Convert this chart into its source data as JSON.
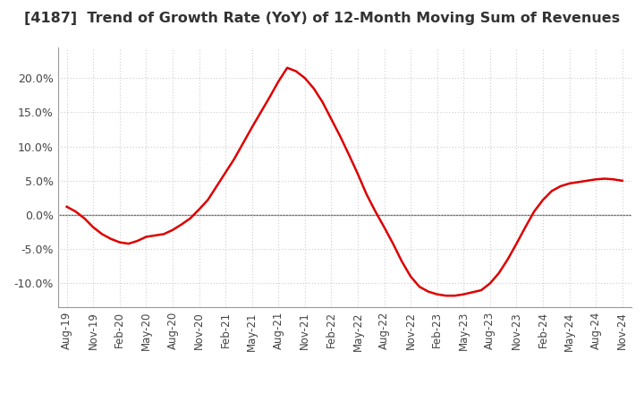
{
  "title": "[4187]  Trend of Growth Rate (YoY) of 12-Month Moving Sum of Revenues",
  "title_fontsize": 11.5,
  "title_color": "#333333",
  "line_color": "#dd0000",
  "line_width": 1.8,
  "background_color": "#ffffff",
  "grid_color": "#cccccc",
  "zero_line_color": "#666666",
  "ylim": [
    -0.135,
    0.245
  ],
  "yticks": [
    -0.1,
    -0.05,
    0.0,
    0.05,
    0.1,
    0.15,
    0.2
  ],
  "monthly_values": [
    0.012,
    0.005,
    -0.005,
    -0.018,
    -0.028,
    -0.035,
    -0.04,
    -0.042,
    -0.038,
    -0.032,
    -0.03,
    -0.028,
    -0.022,
    -0.014,
    -0.005,
    0.008,
    0.022,
    0.042,
    0.062,
    0.082,
    0.105,
    0.128,
    0.15,
    0.172,
    0.195,
    0.215,
    0.21,
    0.2,
    0.185,
    0.165,
    0.14,
    0.115,
    0.088,
    0.06,
    0.03,
    0.005,
    -0.018,
    -0.042,
    -0.068,
    -0.09,
    -0.105,
    -0.112,
    -0.116,
    -0.118,
    -0.118,
    -0.116,
    -0.113,
    -0.11,
    -0.1,
    -0.085,
    -0.065,
    -0.042,
    -0.018,
    0.005,
    0.022,
    0.035,
    0.042,
    0.046,
    0.048,
    0.05,
    0.052,
    0.053,
    0.052,
    0.05
  ],
  "tick_labels": [
    "Aug-19",
    "Nov-19",
    "Feb-20",
    "May-20",
    "Aug-20",
    "Nov-20",
    "Feb-21",
    "May-21",
    "Aug-21",
    "Nov-21",
    "Feb-22",
    "May-22",
    "Aug-22",
    "Nov-22",
    "Feb-23",
    "May-23",
    "Aug-23",
    "Nov-23",
    "Feb-24",
    "May-24",
    "Aug-24",
    "Nov-24"
  ],
  "tick_positions": [
    0,
    3,
    6,
    9,
    12,
    15,
    18,
    21,
    24,
    27,
    30,
    33,
    36,
    39,
    42,
    45,
    48,
    51,
    54,
    57,
    60,
    63
  ]
}
